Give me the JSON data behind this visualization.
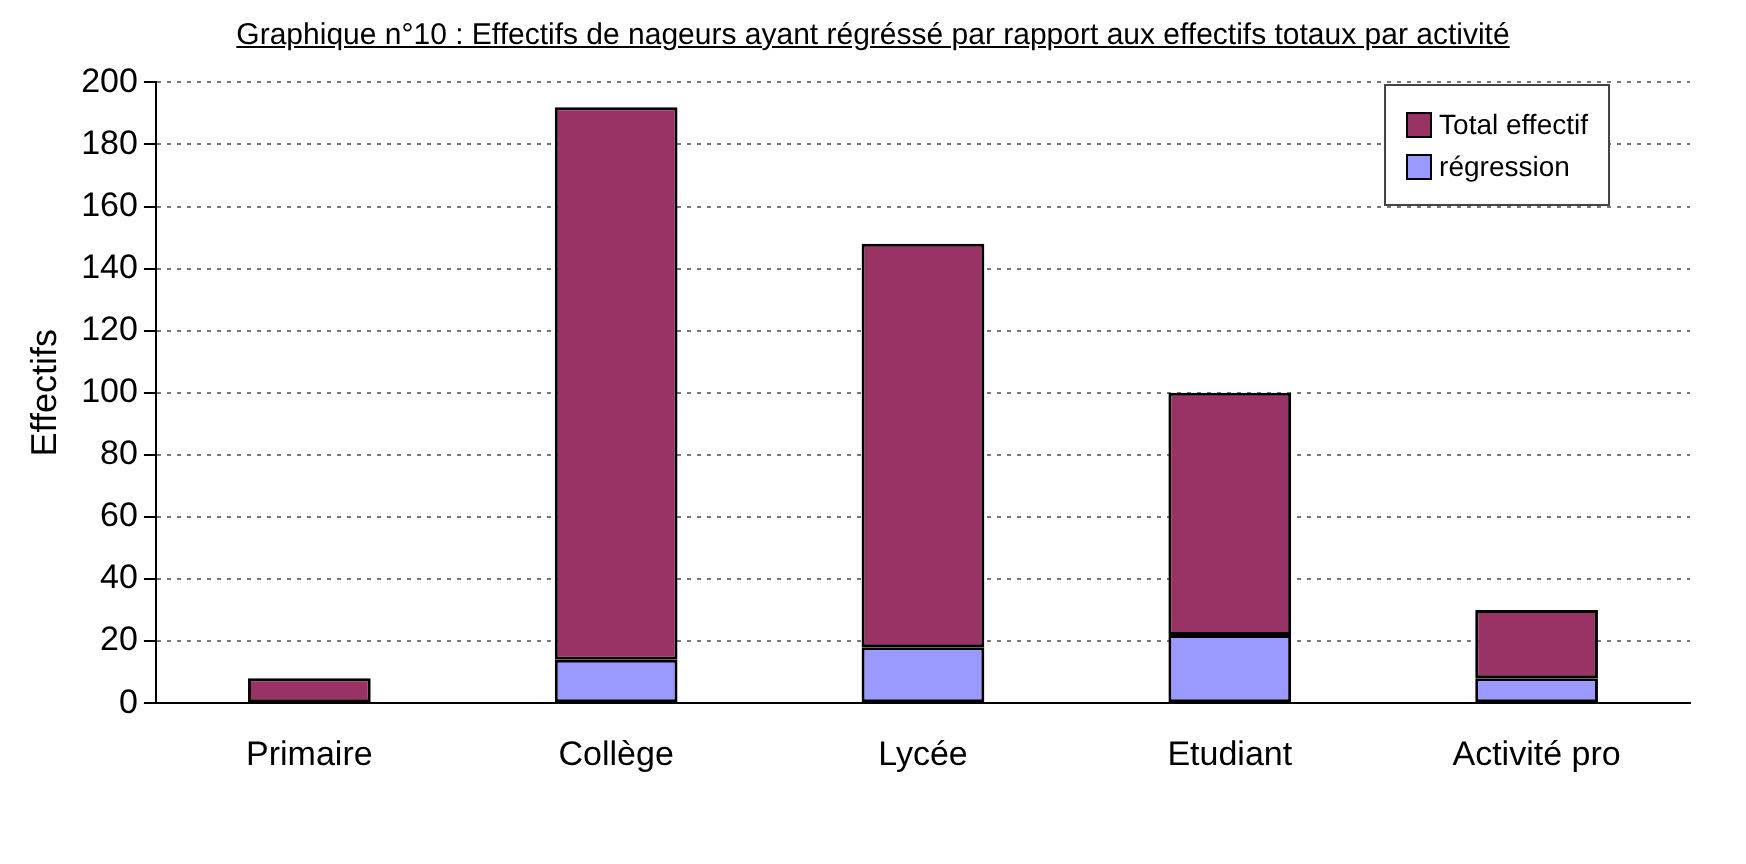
{
  "chart_data": {
    "type": "bar",
    "title": "Graphique n°10 : Effectifs de nageurs ayant régréssé par rapport aux effectifs totaux par activité",
    "ylabel": "Effectifs",
    "categories": [
      "Primaire",
      "Collège",
      "Lycée",
      "Etudiant",
      "Activité pro"
    ],
    "series": [
      {
        "name": "régression",
        "color": "#9999ff",
        "values": [
          0,
          14,
          18,
          22,
          8
        ]
      },
      {
        "name": "Total effectif",
        "color": "#993366",
        "values": [
          8,
          178,
          130,
          78,
          22
        ]
      }
    ],
    "stacked": true,
    "ylim": [
      0,
      200
    ],
    "yticks": [
      0,
      20,
      40,
      60,
      80,
      100,
      120,
      140,
      160,
      180,
      200
    ],
    "grid": "y",
    "legend": "top right"
  }
}
